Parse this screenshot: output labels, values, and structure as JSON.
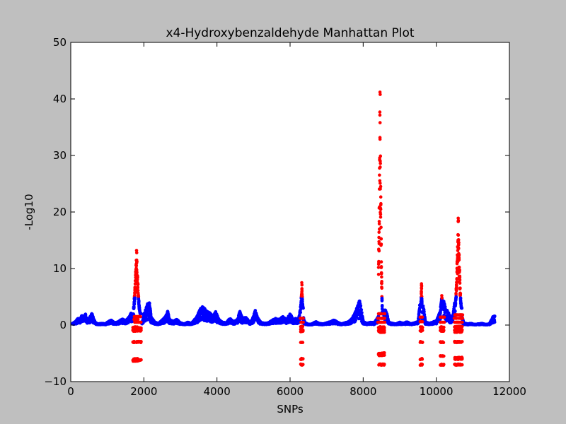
{
  "chart_data": {
    "type": "scatter",
    "title": "x4-Hydroxybenzaldehyde Manhattan Plot",
    "xlabel": "SNPs",
    "ylabel": "-Log10",
    "xlim": [
      0,
      12000
    ],
    "ylim": [
      -10,
      50
    ],
    "xticks": [
      0,
      2000,
      4000,
      6000,
      8000,
      10000,
      12000
    ],
    "yticks": [
      -10,
      0,
      10,
      20,
      30,
      40,
      50
    ],
    "xtick_labels": [
      "0",
      "2000",
      "4000",
      "6000",
      "8000",
      "10000",
      "12000"
    ],
    "ytick_labels": [
      "−10",
      "0",
      "10",
      "20",
      "30",
      "40",
      "50"
    ],
    "grid": false,
    "legend": "none",
    "colors": {
      "background": "#bfbfbf",
      "blue": "#0000ff",
      "red": "#ff0000"
    },
    "x_start": 50,
    "x_end": 11600,
    "baseline_breakpoints": [
      [
        50,
        0.3
      ],
      [
        120,
        0.6
      ],
      [
        200,
        1.2
      ],
      [
        260,
        1.0
      ],
      [
        300,
        1.8
      ],
      [
        340,
        1.2
      ],
      [
        400,
        2.0
      ],
      [
        450,
        0.8
      ],
      [
        520,
        1.4
      ],
      [
        580,
        2.1
      ],
      [
        620,
        1.2
      ],
      [
        680,
        0.4
      ],
      [
        750,
        0.2
      ],
      [
        850,
        0.3
      ],
      [
        950,
        0.2
      ],
      [
        1000,
        0.5
      ],
      [
        1100,
        0.9
      ],
      [
        1200,
        0.4
      ],
      [
        1300,
        0.6
      ],
      [
        1400,
        1.1
      ],
      [
        1500,
        0.8
      ],
      [
        1600,
        1.5
      ],
      [
        1650,
        2.2
      ],
      [
        1700,
        1.8
      ],
      [
        1760,
        3.0
      ],
      [
        1800,
        4.5
      ],
      [
        1850,
        3.5
      ],
      [
        1900,
        2.0
      ],
      [
        1950,
        0.3
      ],
      [
        2000,
        1.8
      ],
      [
        2050,
        3.0
      ],
      [
        2100,
        3.8
      ],
      [
        2150,
        4.2
      ],
      [
        2200,
        1.4
      ],
      [
        2300,
        0.5
      ],
      [
        2400,
        0.3
      ],
      [
        2500,
        0.9
      ],
      [
        2600,
        1.6
      ],
      [
        2650,
        2.5
      ],
      [
        2700,
        1.0
      ],
      [
        2800,
        0.7
      ],
      [
        2900,
        1.0
      ],
      [
        3000,
        0.4
      ],
      [
        3100,
        0.2
      ],
      [
        3200,
        0.5
      ],
      [
        3300,
        0.3
      ],
      [
        3450,
        1.5
      ],
      [
        3550,
        3.0
      ],
      [
        3620,
        3.3
      ],
      [
        3700,
        2.6
      ],
      [
        3800,
        2.2
      ],
      [
        3900,
        1.5
      ],
      [
        3960,
        2.4
      ],
      [
        4050,
        1.0
      ],
      [
        4150,
        0.5
      ],
      [
        4250,
        0.4
      ],
      [
        4350,
        1.2
      ],
      [
        4450,
        0.6
      ],
      [
        4550,
        0.9
      ],
      [
        4620,
        2.5
      ],
      [
        4700,
        1.2
      ],
      [
        4800,
        1.4
      ],
      [
        4900,
        0.3
      ],
      [
        5000,
        1.6
      ],
      [
        5050,
        2.7
      ],
      [
        5100,
        1.4
      ],
      [
        5200,
        0.5
      ],
      [
        5300,
        0.3
      ],
      [
        5400,
        0.4
      ],
      [
        5500,
        0.8
      ],
      [
        5600,
        1.2
      ],
      [
        5700,
        1.0
      ],
      [
        5800,
        1.5
      ],
      [
        5900,
        1.0
      ],
      [
        6000,
        2.0
      ],
      [
        6050,
        1.4
      ],
      [
        6100,
        0.9
      ],
      [
        6150,
        1.2
      ],
      [
        6200,
        0.8
      ],
      [
        6250,
        1.6
      ],
      [
        6300,
        3.8
      ],
      [
        6340,
        2.0
      ],
      [
        6400,
        0.5
      ],
      [
        6500,
        0.1
      ],
      [
        6600,
        0.2
      ],
      [
        6700,
        0.6
      ],
      [
        6800,
        0.3
      ],
      [
        6900,
        0.2
      ],
      [
        7000,
        0.4
      ],
      [
        7100,
        0.6
      ],
      [
        7200,
        0.9
      ],
      [
        7300,
        0.5
      ],
      [
        7400,
        0.2
      ],
      [
        7500,
        0.4
      ],
      [
        7600,
        0.6
      ],
      [
        7700,
        1.2
      ],
      [
        7800,
        2.6
      ],
      [
        7850,
        3.5
      ],
      [
        7900,
        4.4
      ],
      [
        7950,
        2.8
      ],
      [
        8000,
        0.6
      ],
      [
        8100,
        0.3
      ],
      [
        8200,
        0.5
      ],
      [
        8300,
        0.4
      ],
      [
        8380,
        1.2
      ],
      [
        8450,
        2.0
      ],
      [
        8500,
        0.6
      ],
      [
        8560,
        2.5
      ],
      [
        8620,
        2.8
      ],
      [
        8700,
        0.5
      ],
      [
        8800,
        0.3
      ],
      [
        8900,
        0.2
      ],
      [
        9000,
        0.5
      ],
      [
        9100,
        0.3
      ],
      [
        9200,
        0.6
      ],
      [
        9300,
        0.2
      ],
      [
        9400,
        0.4
      ],
      [
        9500,
        0.6
      ],
      [
        9550,
        3.8
      ],
      [
        9600,
        4.2
      ],
      [
        9650,
        3.2
      ],
      [
        9700,
        0.6
      ],
      [
        9800,
        0.3
      ],
      [
        9900,
        0.5
      ],
      [
        10000,
        0.8
      ],
      [
        10050,
        1.5
      ],
      [
        10100,
        2.5
      ],
      [
        10150,
        3.2
      ],
      [
        10200,
        4.5
      ],
      [
        10250,
        3.0
      ],
      [
        10300,
        2.6
      ],
      [
        10350,
        2.0
      ],
      [
        10400,
        1.0
      ],
      [
        10450,
        1.6
      ],
      [
        10500,
        4.0
      ],
      [
        10550,
        2.6
      ],
      [
        10600,
        7.0
      ],
      [
        10650,
        4.5
      ],
      [
        10700,
        1.6
      ],
      [
        10750,
        0.4
      ],
      [
        10850,
        0.2
      ],
      [
        10950,
        0.3
      ],
      [
        11050,
        0.1
      ],
      [
        11150,
        0.2
      ],
      [
        11250,
        0.3
      ],
      [
        11350,
        0.1
      ],
      [
        11450,
        0.2
      ],
      [
        11550,
        1.5
      ],
      [
        11600,
        1.7
      ]
    ],
    "peaks": [
      {
        "x_start": 1720,
        "x_end": 1930,
        "x_peak": 1800,
        "max": 13.2,
        "floor": 2.0
      },
      {
        "x_start": 6290,
        "x_end": 6360,
        "x_peak": 6320,
        "max": 7.5,
        "floor": 3.0
      },
      {
        "x_start": 8420,
        "x_end": 8560,
        "x_peak": 8460,
        "max": 41.2,
        "floor": 2.0
      },
      {
        "x_start": 9570,
        "x_end": 9610,
        "x_peak": 9595,
        "max": 7.3,
        "floor": 3.5
      },
      {
        "x_start": 10120,
        "x_end": 10200,
        "x_peak": 10150,
        "max": 5.2,
        "floor": 3.0
      },
      {
        "x_start": 10520,
        "x_end": 10700,
        "x_peak": 10600,
        "max": 18.9,
        "floor": 3.0
      }
    ],
    "red_negative_columns": [
      {
        "x": 1700,
        "width": 150,
        "values": [
          -0.4,
          -0.8,
          -1.0,
          -3.0,
          -6.0,
          -6.3
        ]
      },
      {
        "x": 1830,
        "width": 100,
        "values": [
          -0.5,
          -0.9,
          -1.0,
          -3.0,
          -6.2
        ]
      },
      {
        "x": 6290,
        "width": 70,
        "values": [
          -0.3,
          -0.8,
          -1.1,
          -3.0,
          -6.0,
          -7.0
        ]
      },
      {
        "x": 8420,
        "width": 160,
        "values": [
          -0.4,
          -1.0,
          -1.2,
          -5.0,
          -5.3,
          -7.0
        ]
      },
      {
        "x": 9560,
        "width": 70,
        "values": [
          -0.4,
          -1.0,
          -3.0,
          -6.0,
          -7.0
        ]
      },
      {
        "x": 10110,
        "width": 100,
        "values": [
          -0.4,
          -1.0,
          -3.0,
          -5.5,
          -7.0
        ]
      },
      {
        "x": 10500,
        "width": 210,
        "values": [
          -0.3,
          -0.9,
          -1.2,
          -3.0,
          -5.8,
          -6.0,
          -7.0
        ]
      }
    ],
    "red_low_markers": [
      {
        "x": 1730,
        "width": 190,
        "values": [
          0.5,
          1.0,
          1.5
        ]
      },
      {
        "x": 6280,
        "width": 80,
        "values": [
          0.5,
          1.2
        ]
      },
      {
        "x": 8400,
        "width": 200,
        "values": [
          0.5,
          1.2,
          2.0
        ]
      },
      {
        "x": 9560,
        "width": 60,
        "values": [
          0.6,
          1.4
        ]
      },
      {
        "x": 10110,
        "width": 110,
        "values": [
          0.5,
          1.4
        ]
      },
      {
        "x": 10480,
        "width": 240,
        "values": [
          0.5,
          1.2,
          1.8
        ]
      }
    ]
  }
}
